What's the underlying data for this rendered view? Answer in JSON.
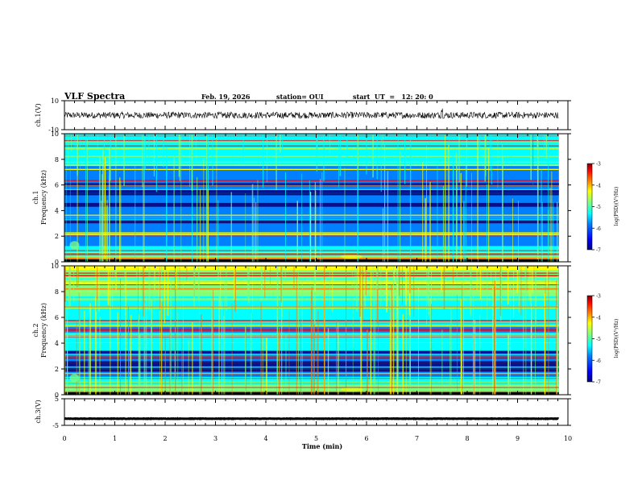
{
  "header": {
    "title": "VLF Spectra",
    "date": "Feb. 19, 2026",
    "station": "station= OUI",
    "start": "start  UT  =   12: 20: 0"
  },
  "colors": {
    "cmap": [
      "#00007f",
      "#0000ff",
      "#007fff",
      "#00ffff",
      "#7fff7f",
      "#ffff00",
      "#ff7f00",
      "#ff0000",
      "#7f0000"
    ],
    "line": "#000000"
  },
  "chart_data": [
    {
      "type": "line",
      "name": "ch1-waveform",
      "ylabel": "ch.1(V)",
      "ylim": [
        -10,
        10
      ],
      "yticks": [
        "10",
        "-10"
      ],
      "level": 0,
      "spike_time_min": 7.5
    },
    {
      "type": "heatmap",
      "name": "ch1-spectrogram",
      "ylabel": "ch.1\nFrequency (kHz)",
      "ylim": [
        0,
        10
      ],
      "yticks": [
        "0",
        "2",
        "4",
        "6",
        "8",
        "10"
      ],
      "colorbar": {
        "label": "log(PSD)(V²/Hz)",
        "range": [
          -7,
          -3
        ],
        "ticks": [
          "-3",
          "-4",
          "-5",
          "-6",
          "-7"
        ]
      }
    },
    {
      "type": "heatmap",
      "name": "ch2-spectrogram",
      "ylabel": "ch.2\nFrequency (kHz)",
      "ylim": [
        0,
        10
      ],
      "yticks": [
        "0",
        "2",
        "4",
        "6",
        "8",
        "10"
      ],
      "colorbar": {
        "label": "log(PSD)(V²/Hz)",
        "range": [
          -7,
          -3
        ],
        "ticks": [
          "-3",
          "-4",
          "-5",
          "-6",
          "-7"
        ]
      }
    },
    {
      "type": "line",
      "name": "ch3-waveform",
      "ylabel": "ch.3(V)",
      "ylim": [
        -5,
        5
      ],
      "yticks": [
        "5",
        "-5"
      ],
      "level": -2.5
    }
  ],
  "xaxis": {
    "label": "Time (min)",
    "range": [
      0,
      10
    ],
    "ticks": [
      "0",
      "1",
      "2",
      "3",
      "4",
      "5",
      "6",
      "7",
      "8",
      "9",
      "10"
    ],
    "data_end_min": 9.82
  },
  "labels": {
    "ch1_volt": "ch.1(V)",
    "ch1_freq_a": "ch.1",
    "ch1_freq_b": "Frequency (kHz)",
    "ch2_freq_a": "ch.2",
    "ch2_freq_b": "Frequency (kHz)",
    "ch3_volt": "ch.3(V)",
    "cbar_label": "log(PSD)(V²/Hz)"
  }
}
